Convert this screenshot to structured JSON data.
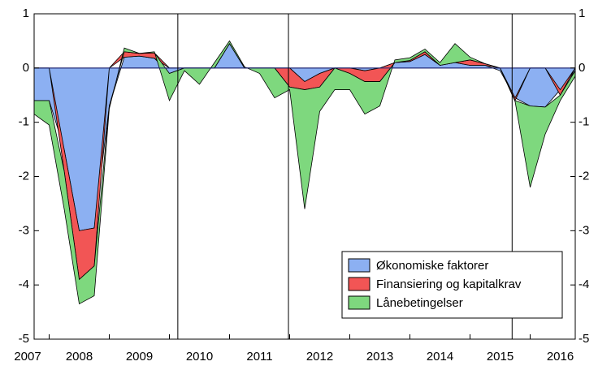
{
  "chart_data": {
    "type": "stacked-area",
    "x": [
      2007.75,
      2008,
      2008.25,
      2008.5,
      2008.75,
      2009,
      2009.25,
      2009.5,
      2009.75,
      2010,
      2010.25,
      2010.5,
      2010.75,
      2011,
      2011.25,
      2011.5,
      2011.75,
      2012,
      2012.25,
      2012.5,
      2012.75,
      2013,
      2013.25,
      2013.5,
      2013.75,
      2014,
      2014.25,
      2014.5,
      2014.75,
      2015,
      2015.25,
      2015.5,
      2015.75,
      2016,
      2016.25,
      2016.5,
      2016.75
    ],
    "series": [
      {
        "name": "Økonomiske faktorer",
        "color": "#8cb0f2",
        "values": [
          -0.6,
          -0.6,
          -1.5,
          -3.0,
          -2.95,
          -0.7,
          0.2,
          0.22,
          0.18,
          -0.1,
          0,
          0,
          0,
          0.45,
          0,
          0,
          0,
          0,
          -0.25,
          -0.1,
          0,
          0,
          -0.05,
          0,
          0.1,
          0.12,
          0.25,
          0.05,
          0.1,
          0.05,
          0.05,
          -0.05,
          -0.55,
          -0.7,
          -0.72,
          -0.4,
          -0.05
        ]
      },
      {
        "name": "Finansiering og kapitalkrav",
        "color": "#f25555",
        "values": [
          0,
          0,
          -0.4,
          -0.9,
          -0.7,
          0,
          0.1,
          0.05,
          0.1,
          0,
          0,
          0,
          0,
          0,
          0,
          0,
          0,
          -0.35,
          -0.15,
          -0.25,
          0,
          -0.1,
          -0.2,
          -0.25,
          0,
          0.02,
          0.05,
          0,
          0,
          0.1,
          0.03,
          0,
          -0.05,
          0,
          0,
          -0.1,
          0
        ]
      },
      {
        "name": "Lånebetingelser",
        "color": "#7ed87e",
        "values": [
          -0.25,
          -0.45,
          -0.7,
          -0.45,
          -0.55,
          -0.05,
          0.07,
          0,
          0.02,
          -0.5,
          -0.05,
          -0.3,
          0.1,
          0.05,
          0.02,
          -0.1,
          -0.55,
          -0.05,
          -2.2,
          -0.45,
          -0.4,
          -0.3,
          -0.6,
          -0.45,
          0.05,
          0.05,
          0.05,
          0.05,
          0.35,
          0.05,
          0,
          0,
          -0.02,
          -1.5,
          -0.5,
          -0.1,
          -0.1
        ]
      }
    ],
    "xlim": [
      2007.75,
      2016.75
    ],
    "xticks": [
      {
        "value": 2007.5,
        "label": "2007"
      },
      {
        "value": 2008.5,
        "label": "2008"
      },
      {
        "value": 2009.5,
        "label": "2009"
      },
      {
        "value": 2010.5,
        "label": "2010"
      },
      {
        "value": 2011.5,
        "label": "2011"
      },
      {
        "value": 2012.5,
        "label": "2012"
      },
      {
        "value": 2013.5,
        "label": "2013"
      },
      {
        "value": 2014.5,
        "label": "2014"
      },
      {
        "value": 2015.5,
        "label": "2015"
      },
      {
        "value": 2016.5,
        "label": "2016"
      }
    ],
    "vlines": [
      2010.14,
      2011.98,
      2015.7
    ],
    "ylim": [
      -5,
      1
    ],
    "yticks": [
      1,
      0,
      -1,
      -2,
      -3,
      -4,
      -5
    ],
    "legend": "lower right"
  }
}
